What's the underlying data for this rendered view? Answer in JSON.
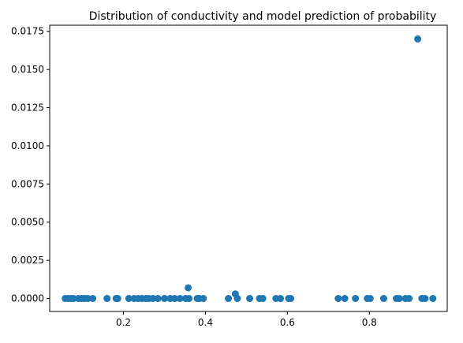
{
  "chart_data": {
    "type": "scatter",
    "title": "Distribution of conductivity and model prediction of probability",
    "xlabel": "",
    "ylabel": "",
    "xlim": [
      0.02,
      0.99
    ],
    "ylim": [
      -0.00085,
      0.0179
    ],
    "x_ticks": [
      0.2,
      0.4,
      0.6,
      0.8
    ],
    "x_tick_labels": [
      "0.2",
      "0.4",
      "0.6",
      "0.8"
    ],
    "y_ticks": [
      0,
      0.0025,
      0.005,
      0.0075,
      0.01,
      0.0125,
      0.015,
      0.0175
    ],
    "y_tick_labels": [
      "0.0000",
      "0.0025",
      "0.0050",
      "0.0075",
      "0.0100",
      "0.0125",
      "0.0150",
      "0.0175"
    ],
    "grid": false,
    "legend": "none",
    "marker_color": "#1f77b4",
    "series": [
      {
        "points": [
          {
            "x": 0.058,
            "y": 0
          },
          {
            "x": 0.065,
            "y": 0
          },
          {
            "x": 0.072,
            "y": 0
          },
          {
            "x": 0.078,
            "y": 0
          },
          {
            "x": 0.09,
            "y": 0
          },
          {
            "x": 0.098,
            "y": 0
          },
          {
            "x": 0.105,
            "y": 0
          },
          {
            "x": 0.113,
            "y": 0
          },
          {
            "x": 0.125,
            "y": 0
          },
          {
            "x": 0.16,
            "y": 0
          },
          {
            "x": 0.182,
            "y": 0
          },
          {
            "x": 0.186,
            "y": 0
          },
          {
            "x": 0.213,
            "y": 0
          },
          {
            "x": 0.226,
            "y": 0
          },
          {
            "x": 0.236,
            "y": 0
          },
          {
            "x": 0.245,
            "y": 0
          },
          {
            "x": 0.255,
            "y": 0
          },
          {
            "x": 0.262,
            "y": 0
          },
          {
            "x": 0.272,
            "y": 0
          },
          {
            "x": 0.284,
            "y": 0
          },
          {
            "x": 0.3,
            "y": 0
          },
          {
            "x": 0.314,
            "y": 0
          },
          {
            "x": 0.325,
            "y": 0
          },
          {
            "x": 0.338,
            "y": 0
          },
          {
            "x": 0.352,
            "y": 0
          },
          {
            "x": 0.358,
            "y": 0.0007
          },
          {
            "x": 0.36,
            "y": 0
          },
          {
            "x": 0.38,
            "y": 0
          },
          {
            "x": 0.385,
            "y": 0
          },
          {
            "x": 0.395,
            "y": 0
          },
          {
            "x": 0.456,
            "y": 0
          },
          {
            "x": 0.473,
            "y": 0.0003
          },
          {
            "x": 0.478,
            "y": 0
          },
          {
            "x": 0.508,
            "y": 0
          },
          {
            "x": 0.532,
            "y": 0
          },
          {
            "x": 0.54,
            "y": 0
          },
          {
            "x": 0.572,
            "y": 0
          },
          {
            "x": 0.583,
            "y": 0
          },
          {
            "x": 0.603,
            "y": 0
          },
          {
            "x": 0.608,
            "y": 0
          },
          {
            "x": 0.724,
            "y": 0
          },
          {
            "x": 0.74,
            "y": 0
          },
          {
            "x": 0.766,
            "y": 0
          },
          {
            "x": 0.795,
            "y": 0
          },
          {
            "x": 0.802,
            "y": 0
          },
          {
            "x": 0.835,
            "y": 0
          },
          {
            "x": 0.866,
            "y": 0
          },
          {
            "x": 0.873,
            "y": 0
          },
          {
            "x": 0.888,
            "y": 0
          },
          {
            "x": 0.897,
            "y": 0
          },
          {
            "x": 0.918,
            "y": 0.017
          },
          {
            "x": 0.928,
            "y": 0
          },
          {
            "x": 0.936,
            "y": 0
          },
          {
            "x": 0.955,
            "y": 0
          }
        ]
      }
    ]
  }
}
